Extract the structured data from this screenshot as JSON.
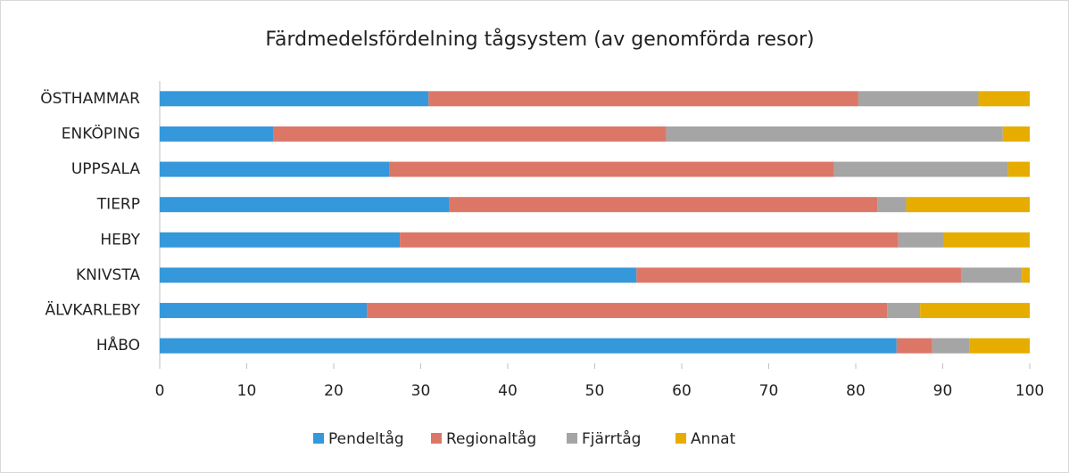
{
  "chart_data": {
    "type": "stacked_barh",
    "title": "Färdmedelsfördelning tågsystem (av genomförda resor)",
    "categories": [
      "ÖSTHAMMAR",
      "ENKÖPING",
      "UPPSALA",
      "TIERP",
      "HEBY",
      "KNIVSTA",
      "ÄLVKARLEBY",
      "HÅBO"
    ],
    "series": [
      {
        "name": "Pendeltåg",
        "color": "#3498db",
        "values": [
          30.9,
          13.1,
          26.4,
          33.3,
          27.6,
          54.8,
          23.8,
          84.7
        ]
      },
      {
        "name": "Regionaltåg",
        "color": "#dc7767",
        "values": [
          49.4,
          45.1,
          51.1,
          49.2,
          57.3,
          37.3,
          59.8,
          4.1
        ]
      },
      {
        "name": "Fjärrtåg",
        "color": "#a5a5a5",
        "values": [
          13.8,
          38.7,
          20.0,
          3.3,
          5.2,
          7.0,
          3.8,
          4.3
        ]
      },
      {
        "name": "Annat",
        "color": "#e6ad00",
        "values": [
          5.9,
          3.1,
          2.5,
          14.2,
          9.9,
          0.9,
          12.6,
          6.9
        ]
      }
    ],
    "xlim": [
      0,
      100
    ],
    "xticks": [
      0,
      10,
      20,
      30,
      40,
      50,
      60,
      70,
      80,
      90,
      100
    ],
    "legend": "bottom"
  }
}
